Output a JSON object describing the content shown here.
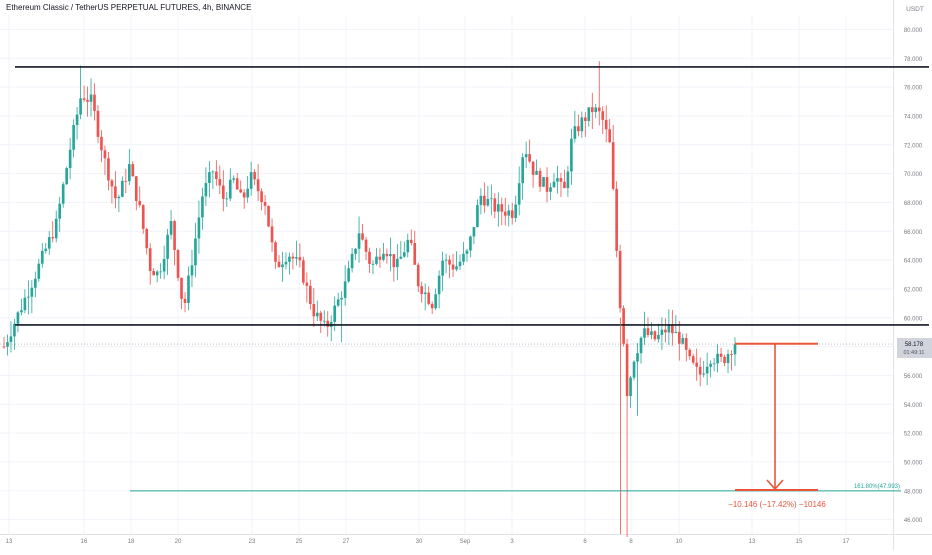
{
  "header": {
    "title": "Ethereum Classic / TetherUS PERPETUAL FUTURES, 4h, BINANCE"
  },
  "chart_data": {
    "type": "candlestick",
    "ylim": [
      45,
      81
    ],
    "currency_label": "USDT",
    "y_ticks": [
      46,
      48,
      50,
      52,
      54,
      56,
      58,
      60,
      62,
      64,
      66,
      68,
      70,
      72,
      74,
      76,
      78,
      80
    ],
    "y_tick_labels": [
      "46.000",
      "48.000",
      "50.000",
      "52.000",
      "54.000",
      "56.000",
      "58.000",
      "60.000",
      "62.000",
      "64.000",
      "66.000",
      "68.000",
      "70.000",
      "72.000",
      "74.000",
      "76.000",
      "78.000",
      "80.000"
    ],
    "x_tick_labels": [
      "13",
      "16",
      "18",
      "20",
      "23",
      "25",
      "27",
      "30",
      "Sep",
      "3",
      "6",
      "8",
      "10",
      "13",
      "15",
      "17"
    ],
    "last_price": {
      "value": 58.178,
      "label": "58.178",
      "countdown": "01:49:11"
    },
    "fib_label": "161.80%(47.993)",
    "measure_label": "−10.146 (−17.42%) −10146",
    "colors": {
      "up": "#26a69a",
      "down": "#ef5350",
      "line": "#131722",
      "measure": "#e8553b",
      "fib": "#26a69a",
      "bg": "#ffffff",
      "grid": "#f0f3fa"
    },
    "lines": [
      {
        "name": "resistance",
        "y": 77.4
      },
      {
        "name": "support",
        "y": 59.5
      },
      {
        "name": "fib-161.8",
        "y": 47.993
      }
    ],
    "measure": {
      "top": 58.2,
      "bottom": 48.05
    },
    "anchor_points": [
      [
        0,
        58.0
      ],
      [
        0.6,
        60.0
      ],
      [
        1.5,
        63.0
      ],
      [
        2.5,
        66.5
      ],
      [
        3.2,
        72.0
      ],
      [
        3.7,
        75.5
      ],
      [
        4.2,
        75.0
      ],
      [
        4.8,
        71.0
      ],
      [
        5.4,
        68.0
      ],
      [
        6.0,
        70.5
      ],
      [
        6.5,
        67.5
      ],
      [
        7.0,
        63.5
      ],
      [
        7.4,
        63.0
      ],
      [
        8.0,
        66.5
      ],
      [
        8.6,
        60.5
      ],
      [
        9.0,
        64.0
      ],
      [
        9.5,
        68.5
      ],
      [
        10.0,
        70.2
      ],
      [
        10.5,
        68.3
      ],
      [
        11.0,
        69.5
      ],
      [
        11.4,
        68.0
      ],
      [
        11.8,
        69.8
      ],
      [
        12.5,
        68.0
      ],
      [
        13.0,
        63.5
      ],
      [
        13.6,
        64.5
      ],
      [
        14.2,
        63.5
      ],
      [
        14.8,
        60.5
      ],
      [
        15.4,
        59.2
      ],
      [
        15.8,
        60.5
      ],
      [
        16.4,
        62.5
      ],
      [
        17.0,
        66.0
      ],
      [
        17.6,
        63.5
      ],
      [
        18.2,
        65.0
      ],
      [
        18.8,
        63.5
      ],
      [
        19.4,
        65.5
      ],
      [
        19.8,
        62.5
      ],
      [
        20.5,
        61.0
      ],
      [
        21.0,
        64.0
      ],
      [
        21.6,
        63.5
      ],
      [
        22.2,
        64.5
      ],
      [
        22.8,
        68.5
      ],
      [
        23.6,
        67.5
      ],
      [
        24.4,
        67.3
      ],
      [
        24.9,
        72.0
      ],
      [
        25.4,
        70.0
      ],
      [
        26.0,
        69.0
      ],
      [
        26.4,
        70.0
      ],
      [
        26.8,
        68.5
      ],
      [
        27.2,
        72.5
      ],
      [
        27.6,
        73.5
      ],
      [
        28.2,
        74.5
      ],
      [
        28.6,
        74.0
      ],
      [
        29.0,
        72.0
      ],
      [
        29.2,
        68.0
      ],
      [
        29.4,
        63.0
      ],
      [
        29.55,
        60.0
      ],
      [
        29.7,
        58.0
      ],
      [
        29.85,
        54.5
      ],
      [
        30.1,
        57.0
      ],
      [
        30.6,
        59.0
      ],
      [
        31.2,
        58.5
      ],
      [
        31.8,
        59.3
      ],
      [
        32.4,
        58.5
      ],
      [
        32.8,
        57.0
      ],
      [
        33.3,
        56.0
      ],
      [
        33.8,
        57.3
      ],
      [
        34.4,
        57.0
      ],
      [
        35.0,
        58.3
      ]
    ],
    "wick_specials": [
      {
        "t": 3.7,
        "high": 77.5
      },
      {
        "t": 28.5,
        "high": 77.8
      },
      {
        "t": 16.2,
        "low": 58.3
      },
      {
        "t": 29.9,
        "low": 44.8
      },
      {
        "t": 30.3,
        "low": 53.2
      }
    ]
  }
}
